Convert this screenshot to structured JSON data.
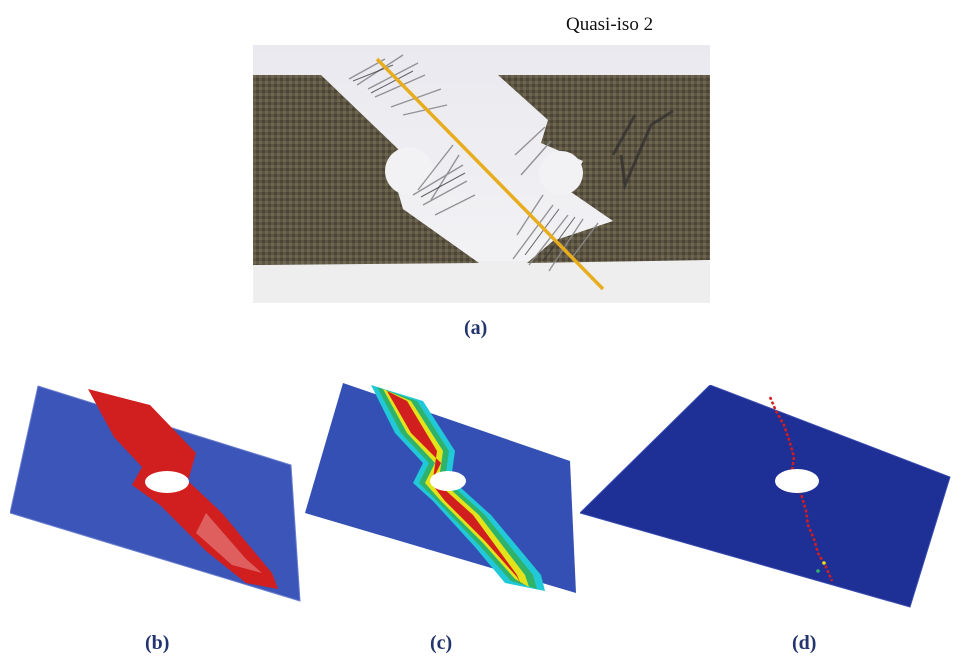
{
  "figure": {
    "title": "Quasi-iso 2",
    "captions": {
      "a": "(a)",
      "b": "(b)",
      "c": "(c)",
      "d": "(d)"
    },
    "colors": {
      "caption": "#23346e",
      "laminate": "#5e5644",
      "yellow_line": "#e8ad1f",
      "sim_blue": "#3450b4",
      "sim_blue_dark": "#1e2f96",
      "damage_red": "#d11e1e",
      "transition_yellow": "#e3e31a",
      "transition_cyan": "#20c8d8",
      "transition_green": "#2fb36b"
    }
  }
}
